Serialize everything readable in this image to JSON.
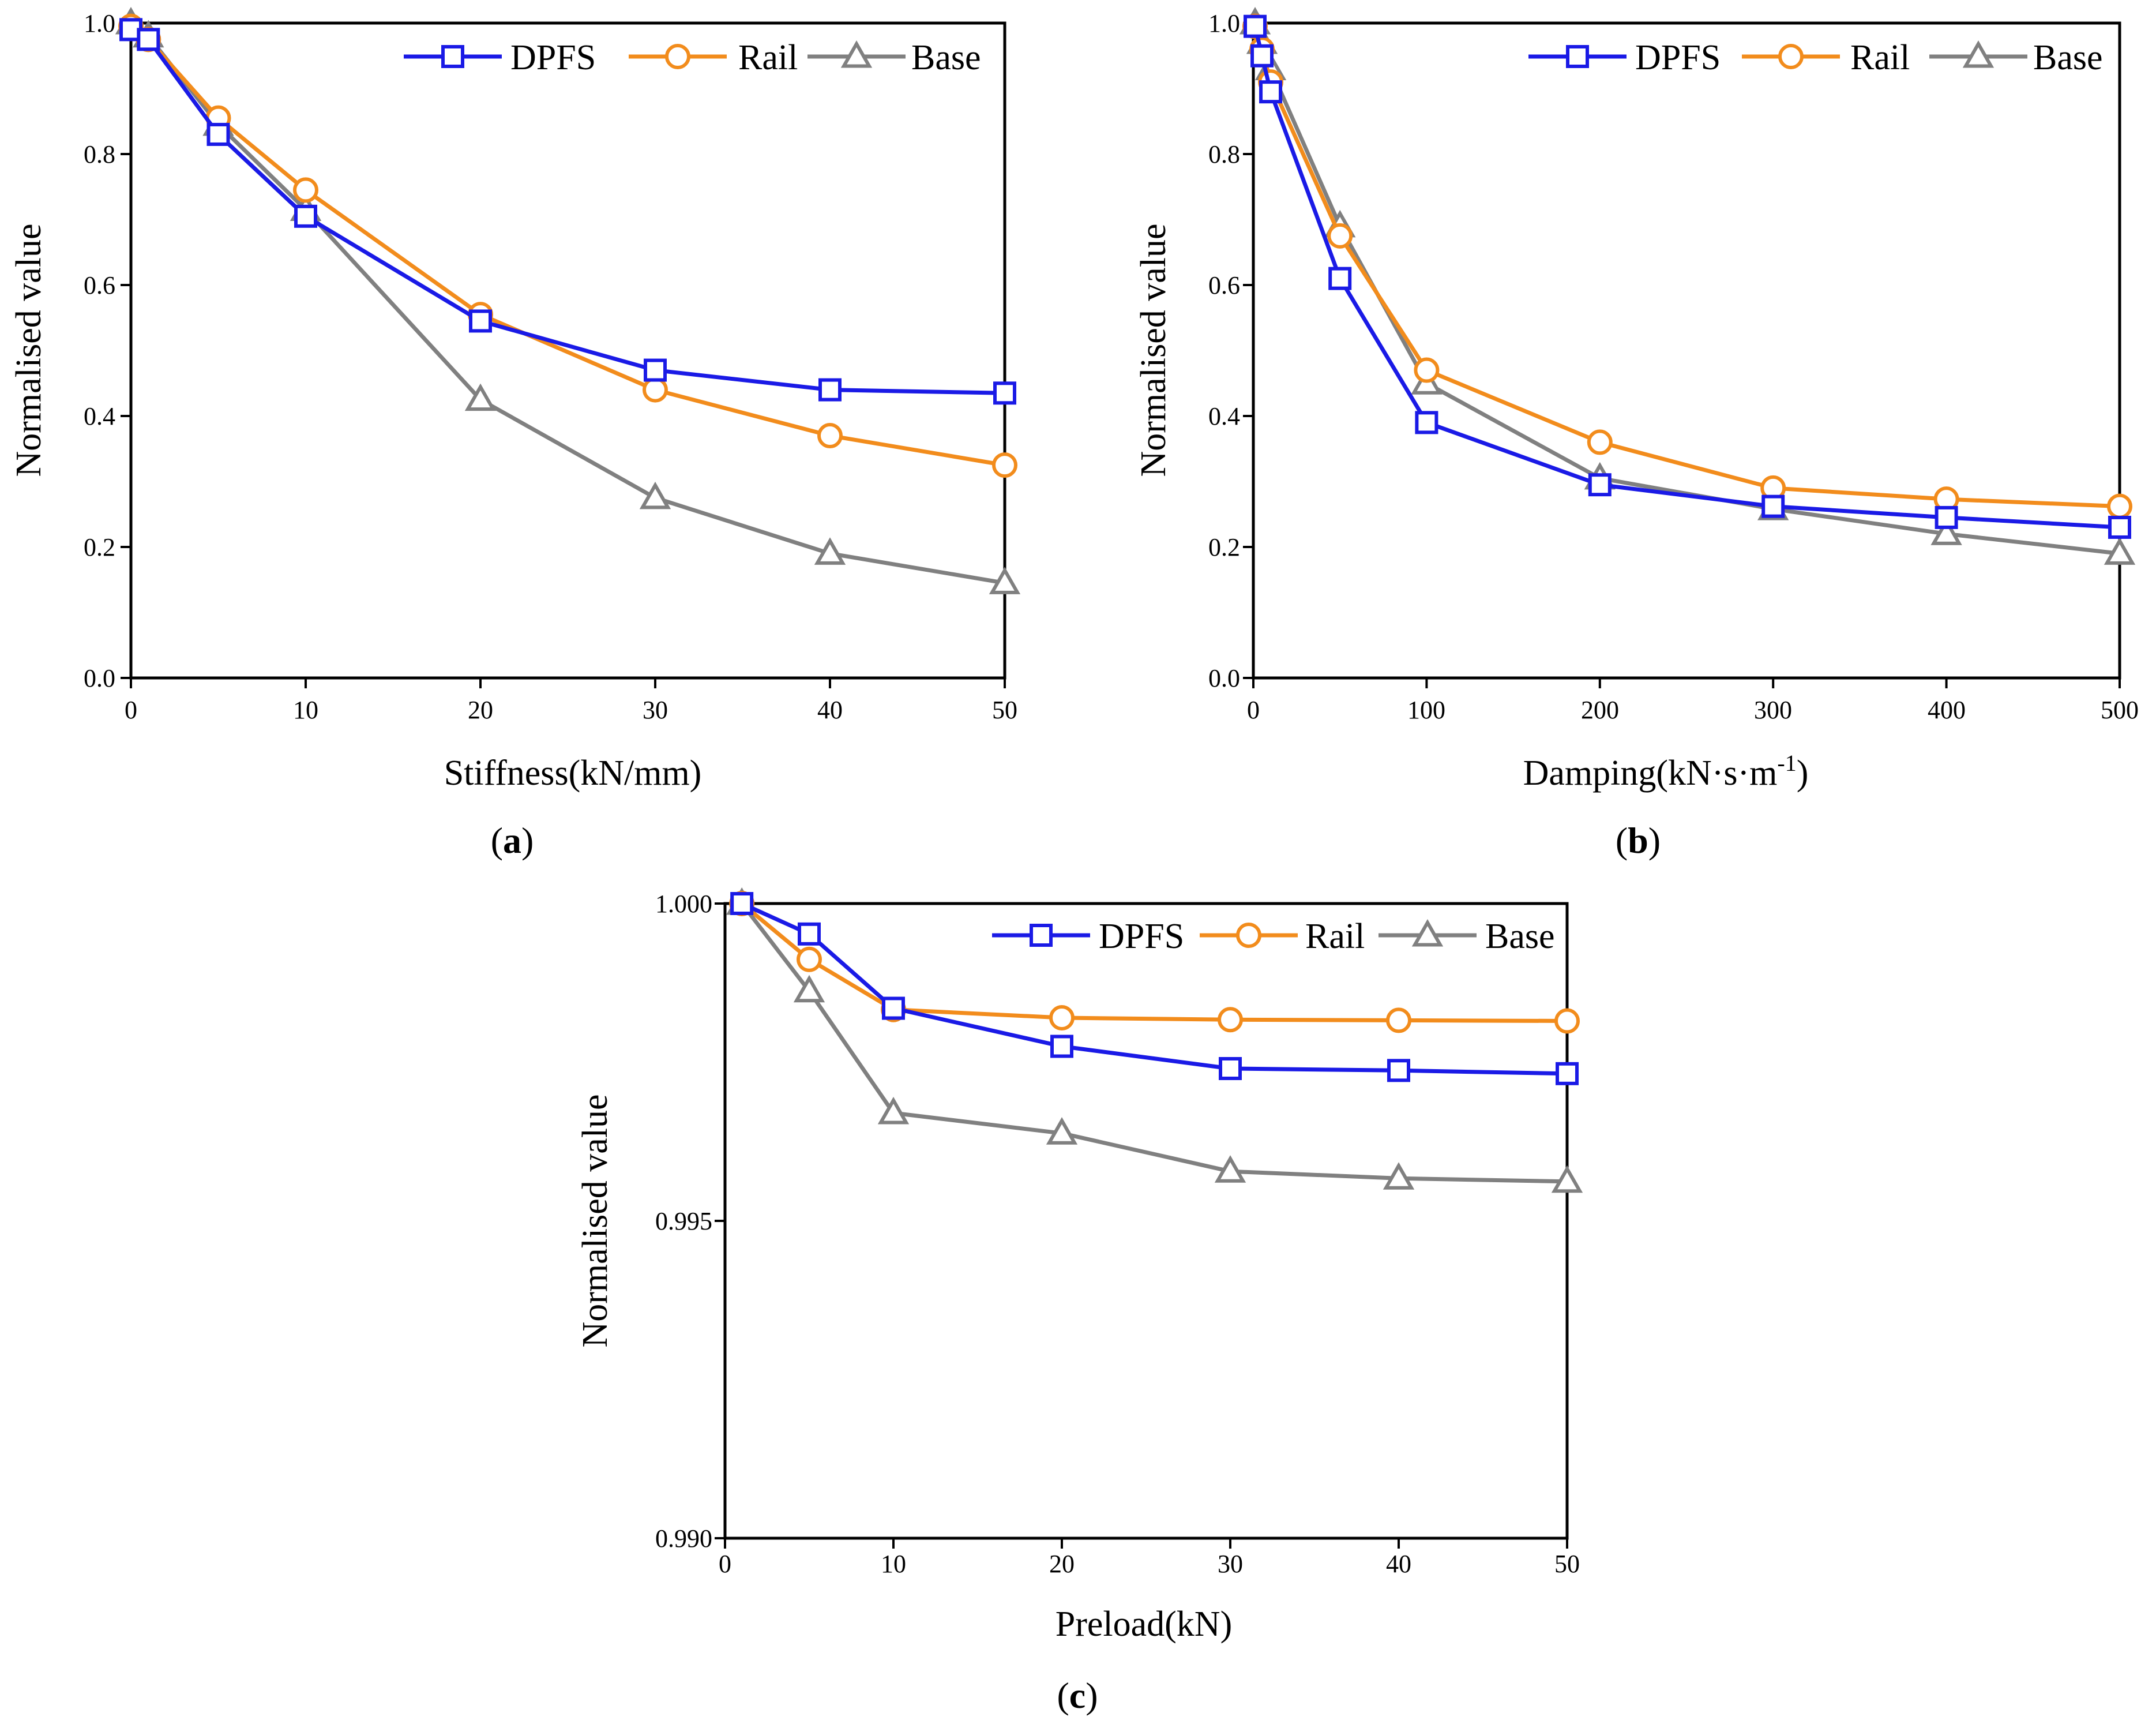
{
  "colors": {
    "DPFS": "#1a1ae6",
    "Rail": "#f28c1c",
    "Base": "#808080",
    "axis": "#000000"
  },
  "chart_data": [
    {
      "id": "a",
      "type": "line",
      "panel_label": "(a)",
      "panel_letter": "a",
      "xlabel": "Stiffness(kN/mm)",
      "ylabel": "Normalised value",
      "xlim": [
        0,
        50
      ],
      "ylim": [
        0,
        1.0
      ],
      "xticks": [
        0,
        10,
        20,
        30,
        40,
        50
      ],
      "xtick_labels": [
        "0",
        "10",
        "20",
        "30",
        "40",
        "50"
      ],
      "yticks": [
        0,
        0.2,
        0.4,
        0.6,
        0.8,
        1.0
      ],
      "ytick_labels": [
        "0.0",
        "0.2",
        "0.4",
        "0.6",
        "0.8",
        "1.0"
      ],
      "legend": {
        "placement": "top-right",
        "entries": [
          "DPFS",
          "Rail",
          "Base"
        ]
      },
      "series": [
        {
          "name": "DPFS",
          "marker": "square",
          "x": [
            0,
            1,
            5,
            10,
            20,
            30,
            40,
            50
          ],
          "y": [
            0.99,
            0.975,
            0.83,
            0.705,
            0.545,
            0.47,
            0.44,
            0.435
          ]
        },
        {
          "name": "Rail",
          "marker": "circle",
          "x": [
            0,
            1,
            5,
            10,
            20,
            30,
            40,
            50
          ],
          "y": [
            0.995,
            0.975,
            0.855,
            0.745,
            0.555,
            0.44,
            0.37,
            0.325
          ]
        },
        {
          "name": "Base",
          "marker": "triangle",
          "x": [
            0,
            1,
            5,
            10,
            20,
            30,
            40,
            50
          ],
          "y": [
            1.0,
            0.98,
            0.845,
            0.715,
            0.425,
            0.275,
            0.19,
            0.145
          ]
        }
      ]
    },
    {
      "id": "b",
      "type": "line",
      "panel_label": "(b)",
      "panel_letter": "b",
      "xlabel": "Damping(kN·s·m",
      "xlabel_sup": "-1",
      "xlabel_tail": ")",
      "ylabel": "Normalised value",
      "xlim": [
        0,
        500
      ],
      "ylim": [
        0,
        1.0
      ],
      "xticks": [
        0,
        100,
        200,
        300,
        400,
        500
      ],
      "xtick_labels": [
        "0",
        "100",
        "200",
        "300",
        "400",
        "500"
      ],
      "yticks": [
        0,
        0.2,
        0.4,
        0.6,
        0.8,
        1.0
      ],
      "ytick_labels": [
        "0.0",
        "0.2",
        "0.4",
        "0.6",
        "0.8",
        "1.0"
      ],
      "legend": {
        "placement": "top-right",
        "entries": [
          "DPFS",
          "Rail",
          "Base"
        ]
      },
      "series": [
        {
          "name": "DPFS",
          "marker": "square",
          "x": [
            1,
            5,
            10,
            50,
            100,
            200,
            300,
            400,
            500
          ],
          "y": [
            0.995,
            0.95,
            0.895,
            0.61,
            0.39,
            0.295,
            0.262,
            0.245,
            0.23
          ]
        },
        {
          "name": "Rail",
          "marker": "circle",
          "x": [
            1,
            5,
            10,
            50,
            100,
            200,
            300,
            400,
            500
          ],
          "y": [
            0.995,
            0.96,
            0.91,
            0.675,
            0.47,
            0.36,
            0.29,
            0.273,
            0.262
          ]
        },
        {
          "name": "Base",
          "marker": "triangle",
          "x": [
            1,
            5,
            10,
            50,
            100,
            200,
            300,
            400,
            500
          ],
          "y": [
            1.0,
            0.97,
            0.93,
            0.69,
            0.45,
            0.305,
            0.258,
            0.22,
            0.19
          ]
        }
      ]
    },
    {
      "id": "c",
      "type": "line",
      "panel_label": "(c)",
      "panel_letter": "c",
      "xlabel": "Preload(kN)",
      "ylabel": "Normalised value",
      "xlim": [
        0,
        50
      ],
      "ylim": [
        0.99,
        1.0
      ],
      "xticks": [
        0,
        10,
        20,
        30,
        40,
        50
      ],
      "xtick_labels": [
        "0",
        "10",
        "20",
        "30",
        "40",
        "50"
      ],
      "yticks": [
        0.99,
        0.995,
        1.0
      ],
      "ytick_labels": [
        "0.990",
        "0.995",
        "1.000"
      ],
      "legend": {
        "placement": "top-right",
        "entries": [
          "DPFS",
          "Rail",
          "Base"
        ]
      },
      "series": [
        {
          "name": "DPFS",
          "marker": "square",
          "x": [
            1,
            5,
            10,
            20,
            30,
            40,
            50
          ],
          "y": [
            1.0,
            0.99952,
            0.99835,
            0.99775,
            0.9974,
            0.99737,
            0.99732
          ]
        },
        {
          "name": "Rail",
          "marker": "circle",
          "x": [
            1,
            5,
            10,
            20,
            30,
            40,
            50
          ],
          "y": [
            1.0,
            0.99912,
            0.99833,
            0.9982,
            0.99817,
            0.99816,
            0.99815
          ]
        },
        {
          "name": "Base",
          "marker": "triangle",
          "x": [
            1,
            5,
            10,
            20,
            30,
            40,
            50
          ],
          "y": [
            1.0,
            0.99862,
            0.9967,
            0.99638,
            0.99578,
            0.99567,
            0.99562
          ]
        }
      ]
    }
  ]
}
